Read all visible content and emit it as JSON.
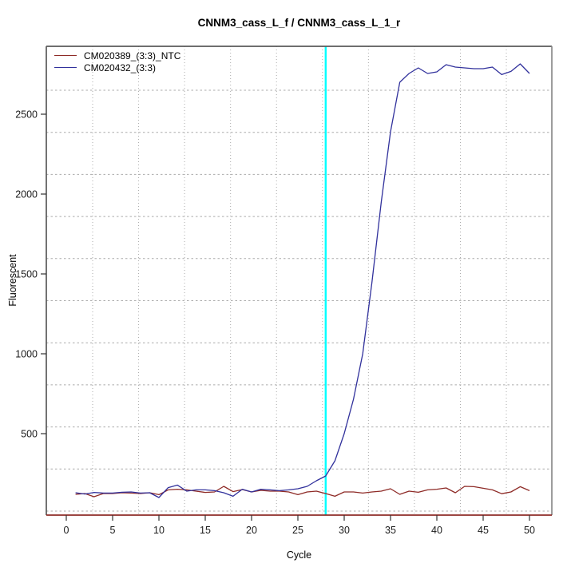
{
  "chart_data": {
    "type": "line",
    "title": "CNNM3_cass_L_f / CNNM3_cass_L_1_r",
    "xlabel": "Cycle",
    "ylabel": "Fluorescent",
    "xlim": [
      -2.2,
      52.4
    ],
    "ylim": [
      -10,
      2925
    ],
    "x_ticks": [
      0,
      5,
      10,
      15,
      20,
      25,
      30,
      35,
      40,
      45,
      50
    ],
    "y_ticks": [
      500,
      1000,
      1500,
      2000,
      2500
    ],
    "grid": "dotted, light gray, offset from ticks",
    "legend_position": "top-left",
    "threshold_line": {
      "cycle": 28,
      "color": "#00FFFF"
    },
    "x_first_cycle": 1,
    "series": [
      {
        "name": "CM020389_(3:3)_NTC",
        "color": "#8E2B27",
        "values": [
          120,
          125,
          105,
          125,
          125,
          130,
          128,
          125,
          130,
          118,
          148,
          152,
          148,
          140,
          132,
          135,
          170,
          137,
          150,
          135,
          145,
          140,
          140,
          135,
          118,
          135,
          140,
          125,
          108,
          135,
          135,
          128,
          135,
          140,
          155,
          120,
          140,
          133,
          148,
          152,
          160,
          130,
          170,
          168,
          158,
          148,
          124,
          135,
          168,
          143
        ]
      },
      {
        "name": "CM020432_(3:3)",
        "color": "#31319C",
        "values": [
          130,
          122,
          132,
          128,
          128,
          133,
          135,
          128,
          130,
          100,
          162,
          178,
          140,
          148,
          148,
          143,
          130,
          108,
          152,
          135,
          152,
          148,
          143,
          148,
          155,
          170,
          205,
          235,
          330,
          500,
          715,
          1000,
          1450,
          1950,
          2390,
          2700,
          2755,
          2790,
          2755,
          2765,
          2810,
          2795,
          2790,
          2785,
          2785,
          2795,
          2748,
          2768,
          2815,
          2755
        ]
      }
    ],
    "baseline_axis_color": "#8E2B27",
    "box_color": "#6f6f6f",
    "grid_color": "#ABABAB",
    "text_color": "#1a1a1a"
  }
}
